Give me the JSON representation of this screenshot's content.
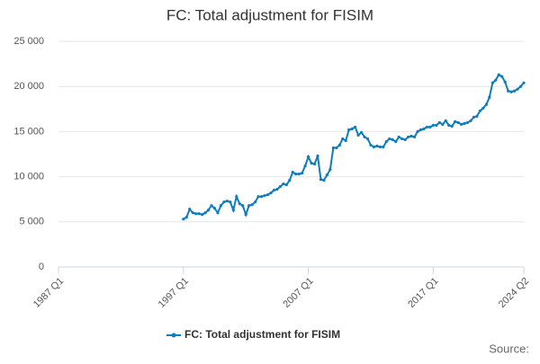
{
  "chart_data": {
    "type": "line",
    "title": "FC: Total adjustment for FISIM",
    "categories": [
      "1987 Q1",
      null,
      null,
      null,
      null,
      null,
      null,
      null,
      null,
      null,
      null,
      null,
      null,
      null,
      null,
      null,
      null,
      null,
      null,
      null,
      null,
      null,
      null,
      null,
      null,
      null,
      null,
      null,
      null,
      null,
      null,
      null,
      null,
      null,
      null,
      null,
      null,
      null,
      null,
      null,
      "1997 Q1",
      null,
      null,
      null,
      null,
      null,
      null,
      null,
      null,
      null,
      null,
      null,
      null,
      null,
      null,
      null,
      null,
      null,
      null,
      null,
      null,
      null,
      null,
      null,
      null,
      null,
      null,
      null,
      null,
      null,
      null,
      null,
      null,
      null,
      null,
      null,
      null,
      null,
      null,
      null,
      "2007 Q1",
      null,
      null,
      null,
      null,
      null,
      null,
      null,
      null,
      null,
      null,
      null,
      null,
      null,
      null,
      null,
      null,
      null,
      null,
      null,
      null,
      null,
      null,
      null,
      null,
      null,
      null,
      null,
      null,
      null,
      null,
      null,
      null,
      null,
      null,
      null,
      null,
      null,
      null,
      null,
      "2017 Q1",
      null,
      null,
      null,
      null,
      null,
      null,
      null,
      null,
      null,
      null,
      null,
      null,
      null,
      null,
      null,
      null,
      null,
      null,
      null,
      null,
      null,
      null,
      null,
      null,
      null,
      null,
      null,
      null,
      "2024 Q2"
    ],
    "series": [
      {
        "name": "FC: Total adjustment for FISIM",
        "color": "#0f7dbd",
        "values": [
          null,
          null,
          null,
          null,
          null,
          null,
          null,
          null,
          null,
          null,
          null,
          null,
          null,
          null,
          null,
          null,
          null,
          null,
          null,
          null,
          null,
          null,
          null,
          null,
          null,
          null,
          null,
          null,
          null,
          null,
          null,
          null,
          null,
          null,
          null,
          null,
          null,
          null,
          null,
          null,
          5300,
          5500,
          6400,
          6000,
          5900,
          5900,
          5800,
          6000,
          6300,
          6800,
          6500,
          6000,
          6800,
          7200,
          7300,
          7200,
          6300,
          7800,
          7000,
          6800,
          5800,
          6800,
          6900,
          7200,
          7800,
          7800,
          7900,
          8000,
          8200,
          8500,
          8600,
          8900,
          9200,
          9100,
          9600,
          10500,
          10300,
          10300,
          10400,
          11200,
          12200,
          11500,
          11400,
          12300,
          9700,
          9600,
          10200,
          10800,
          13200,
          13200,
          13500,
          14200,
          14000,
          15200,
          15300,
          15500,
          14600,
          14900,
          14400,
          14200,
          13500,
          13300,
          13400,
          13300,
          13300,
          13900,
          14200,
          14100,
          13900,
          14400,
          14200,
          14100,
          14400,
          14500,
          14400,
          15000,
          15200,
          15300,
          15500,
          15500,
          15700,
          15700,
          16000,
          15800,
          16200,
          15700,
          15600,
          16100,
          16000,
          15800,
          15900,
          16000,
          16200,
          16600,
          16700,
          17300,
          17600,
          18000,
          18800,
          20400,
          20700,
          21300,
          21100,
          20500,
          19500,
          19400,
          19500,
          19700,
          20000,
          20400
        ]
      }
    ],
    "ylim": [
      0,
      25000
    ],
    "yticks": [
      0,
      {
        "value": 5000,
        "label": "5 000"
      },
      {
        "value": 10000,
        "label": "10 000"
      },
      {
        "value": 15000,
        "label": "15 000"
      },
      {
        "value": 20000,
        "label": "20 000"
      },
      {
        "value": 25000,
        "label": "25 000"
      }
    ],
    "grid": true,
    "legend": "bottom",
    "source": "Source:"
  }
}
